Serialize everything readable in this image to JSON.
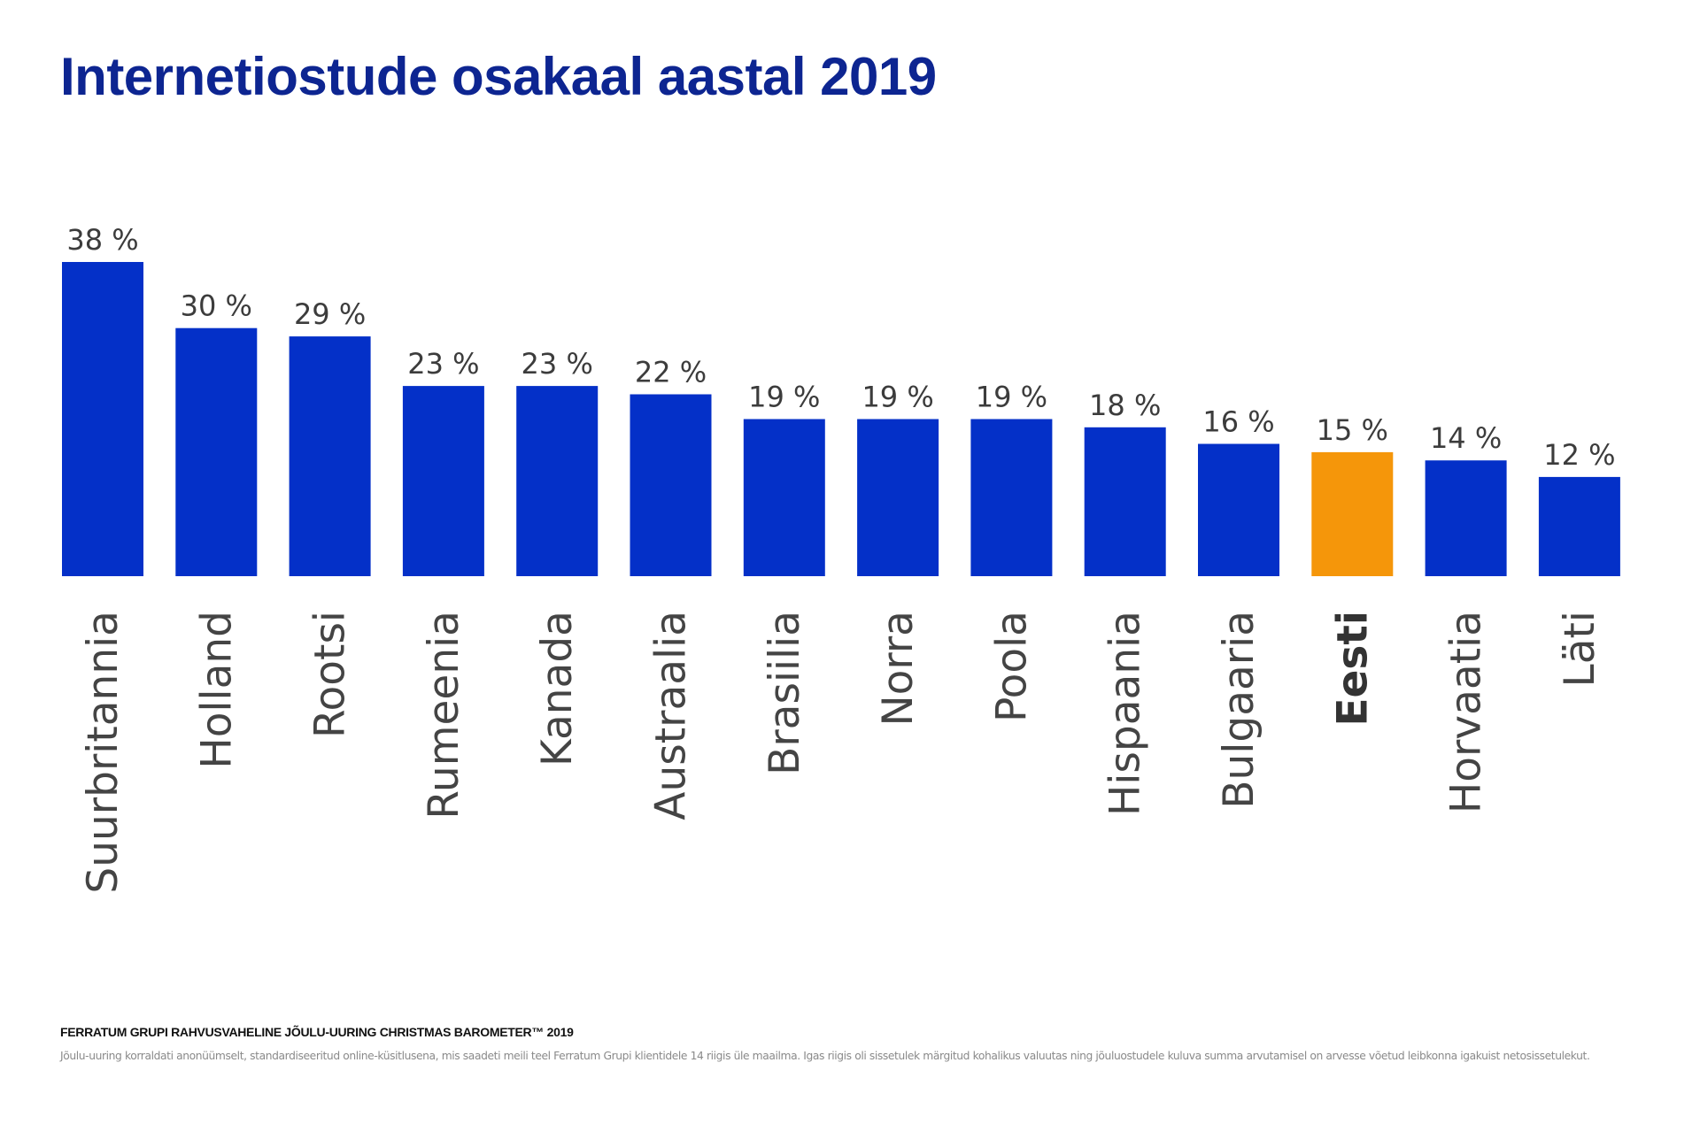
{
  "header": {
    "title": "Internetiostude osakaal aastal 2019"
  },
  "colors": {
    "title": "#0d2591",
    "bar": "#0430c8",
    "highlight_bar": "#f5960a",
    "value_label": "#3c3c3c",
    "category_label": "#444444"
  },
  "chart_data": {
    "type": "bar",
    "title": "Internetiostude osakaal aastal 2019",
    "xlabel": "",
    "ylabel": "",
    "ylim": [
      0,
      38
    ],
    "grid": false,
    "legend": "none",
    "value_suffix": " %",
    "categories": [
      "Suurbritannia",
      "Holland",
      "Rootsi",
      "Rumeenia",
      "Kanada",
      "Austraalia",
      "Brasiilia",
      "Norra",
      "Poola",
      "Hispaania",
      "Bulgaaria",
      "Eesti",
      "Horvaatia",
      "Läti"
    ],
    "values": [
      38,
      30,
      29,
      23,
      23,
      22,
      19,
      19,
      19,
      18,
      16,
      15,
      14,
      12
    ],
    "value_labels": [
      "38 %",
      "30 %",
      "29 %",
      "23 %",
      "23 %",
      "22 %",
      "19 %",
      "19 %",
      "19 %",
      "18 %",
      "16 %",
      "15 %",
      "14 %",
      "12 %"
    ],
    "highlight": "Eesti"
  },
  "footer": {
    "source": "FERRATUM GRUPI RAHVUSVAHELINE JÕULU-UURING CHRISTMAS BAROMETER™ 2019",
    "note": "Jõulu-uuring korraldati anonüümselt, standardiseeritud online-küsitlusena, mis saadeti meili teel Ferratum Grupi klientidele 14 riigis üle maailma. Igas riigis oli sissetulek märgitud kohalikus valuutas ning jõuluostudele kuluva summa arvutamisel on arvesse võetud leibkonna igakuist netosissetulekut."
  }
}
